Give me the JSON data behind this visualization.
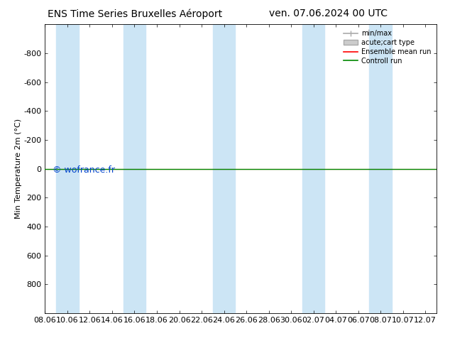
{
  "title_left": "ENS Time Series Bruxelles Aéroport",
  "title_right": "ven. 07.06.2024 00 UTC",
  "ylabel": "Min Temperature 2m (°C)",
  "ylim_top": -1000,
  "ylim_bottom": 1000,
  "xlim_start": 0,
  "xlim_end": 35,
  "yticks": [
    -800,
    -600,
    -400,
    -200,
    0,
    200,
    400,
    600,
    800
  ],
  "xtick_labels": [
    "08.06",
    "10.06",
    "12.06",
    "14.06",
    "16.06",
    "18.06",
    "20.06",
    "22.06",
    "24.06",
    "26.06",
    "28.06",
    "30.06",
    "02.07",
    "04.07",
    "06.07",
    "08.07",
    "10.07",
    "12.07"
  ],
  "background_color": "#ffffff",
  "band_color": "#cce5f5",
  "band_pairs": [
    [
      1,
      3
    ],
    [
      7,
      9
    ],
    [
      15,
      17
    ],
    [
      23,
      25
    ],
    [
      29,
      31
    ]
  ],
  "green_line_y": 0,
  "red_line_y": 0,
  "green_line_color": "#008800",
  "red_line_color": "#ff0000",
  "watermark": "© wofrance.fr",
  "watermark_color": "#0044cc",
  "legend_labels": [
    "min/max",
    "acute;cart type",
    "Ensemble mean run",
    "Controll run"
  ],
  "legend_line_color": "#aaaaaa",
  "legend_box_color": "#cccccc",
  "legend_red": "#ff0000",
  "legend_green": "#008800",
  "title_fontsize": 10,
  "axis_label_fontsize": 8,
  "tick_fontsize": 8,
  "legend_fontsize": 7
}
